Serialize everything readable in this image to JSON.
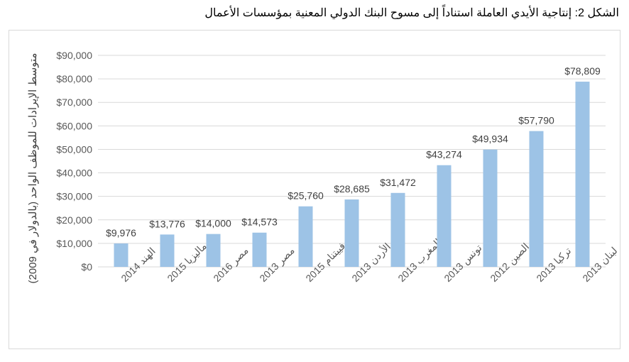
{
  "caption": "الشكل 2: إنتاجية الأيدي العاملة استناداً إلى مسوح البنك الدولي المعنية بمؤسسات الأعمال",
  "colors": {
    "bar": "#9dc3e6",
    "grid": "#d9d9d9",
    "text": "#595959"
  },
  "chart_data": {
    "type": "bar",
    "title": "",
    "xlabel": "",
    "ylabel": "متوسط الإيرادات للموظف الواحد (بالدولار في 2009)",
    "categories": [
      "الهند 2014",
      "ماليزيا 2015",
      "مصر 2016",
      "مصر 2013",
      "فييتنام 2015",
      "الأردن 2013",
      "المغرب 2013",
      "تونس 2013",
      "الصين 2012",
      "تركيا 2013",
      "لبنان 2013"
    ],
    "values": [
      9976,
      13776,
      14000,
      14573,
      25760,
      28685,
      31472,
      43274,
      49934,
      57790,
      78809
    ],
    "value_labels": [
      "$9,976",
      "$13,776",
      "$14,000",
      "$14,573",
      "$25,760",
      "$28,685",
      "$31,472",
      "$43,274",
      "$49,934",
      "$57,790",
      "$78,809"
    ],
    "ylim": [
      0,
      90000
    ],
    "y_ticks": [
      0,
      10000,
      20000,
      30000,
      40000,
      50000,
      60000,
      70000,
      80000,
      90000
    ],
    "y_tick_labels": [
      "$0",
      "$10,000",
      "$20,000",
      "$30,000",
      "$40,000",
      "$50,000",
      "$60,000",
      "$70,000",
      "$80,000",
      "$90,000"
    ],
    "grid": true,
    "legend": "none"
  }
}
